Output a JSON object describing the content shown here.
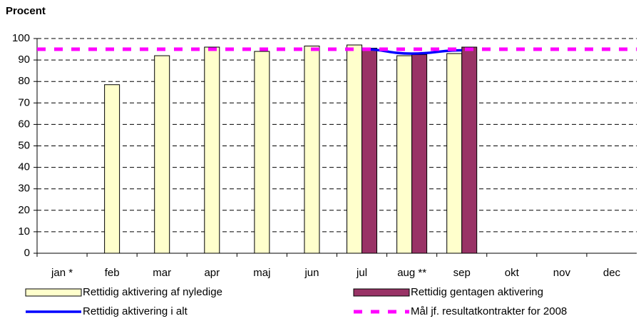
{
  "chart_data": {
    "type": "bar",
    "title": "Procent",
    "categories": [
      "jan *",
      "feb",
      "mar",
      "apr",
      "maj",
      "jun",
      "jul",
      "aug **",
      "sep",
      "okt",
      "nov",
      "dec"
    ],
    "series": [
      {
        "name": "Rettidig aktivering af nyledige",
        "color": "#ffffcc",
        "type": "bar",
        "values": [
          null,
          78.5,
          92,
          96,
          94,
          96.5,
          97,
          92,
          93,
          null,
          null,
          null
        ]
      },
      {
        "name": "Rettidig gentagen aktivering",
        "color": "#993366",
        "type": "bar",
        "values": [
          null,
          null,
          null,
          null,
          null,
          null,
          95.5,
          92.5,
          96,
          null,
          null,
          null
        ]
      },
      {
        "name": "Rettidig aktivering i alt",
        "color": "#0000ff",
        "type": "line",
        "values": [
          null,
          null,
          null,
          null,
          null,
          null,
          95,
          93,
          94.5,
          null,
          null,
          null
        ]
      },
      {
        "name": "Mål jf. resultatkontrakter for 2008",
        "color": "#ff00ff",
        "type": "dashed-line",
        "values": [
          95,
          95,
          95,
          95,
          95,
          95,
          95,
          95,
          95,
          95,
          95,
          95
        ]
      }
    ],
    "ylim": [
      0,
      100
    ],
    "yticks": [
      0,
      10,
      20,
      30,
      40,
      50,
      60,
      70,
      80,
      90,
      100
    ],
    "grid": true,
    "legend": "bottom"
  }
}
